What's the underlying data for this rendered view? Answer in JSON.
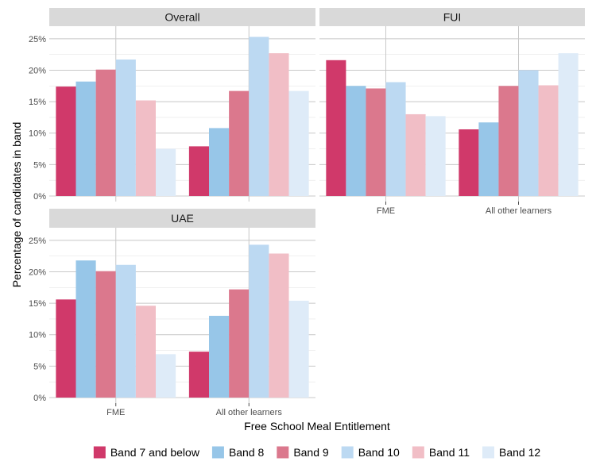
{
  "chart_data": {
    "type": "bar",
    "xlabel": "Free School Meal Entitlement",
    "ylabel": "Percentage of candidates in band",
    "categories": [
      "FME",
      "All other learners"
    ],
    "ylim": [
      0,
      27
    ],
    "yticks": [
      0,
      5,
      10,
      15,
      20,
      25
    ],
    "ytick_labels": [
      "0%",
      "5%",
      "10%",
      "15%",
      "20%",
      "25%"
    ],
    "legend_position": "bottom",
    "series": [
      {
        "name": "Band 7 and below",
        "color": "#d0396a"
      },
      {
        "name": "Band 8",
        "color": "#97c6e8"
      },
      {
        "name": "Band 9",
        "color": "#db788d"
      },
      {
        "name": "Band 10",
        "color": "#bcd9f2"
      },
      {
        "name": "Band 11",
        "color": "#f1bec6"
      },
      {
        "name": "Band 12",
        "color": "#deebf8"
      }
    ],
    "panels": [
      {
        "title": "Overall",
        "values": [
          [
            17.4,
            18.2,
            20.1,
            21.7,
            15.2,
            7.5
          ],
          [
            7.9,
            10.8,
            16.7,
            25.3,
            22.7,
            16.7
          ]
        ]
      },
      {
        "title": "FUI",
        "values": [
          [
            21.6,
            17.5,
            17.1,
            18.1,
            13.0,
            12.7
          ],
          [
            10.6,
            11.7,
            17.5,
            20.0,
            17.6,
            22.7
          ]
        ]
      },
      {
        "title": "UAE",
        "values": [
          [
            15.6,
            21.8,
            20.1,
            21.1,
            14.6,
            6.9
          ],
          [
            7.3,
            13.0,
            17.2,
            24.3,
            22.9,
            15.4
          ]
        ]
      }
    ]
  }
}
